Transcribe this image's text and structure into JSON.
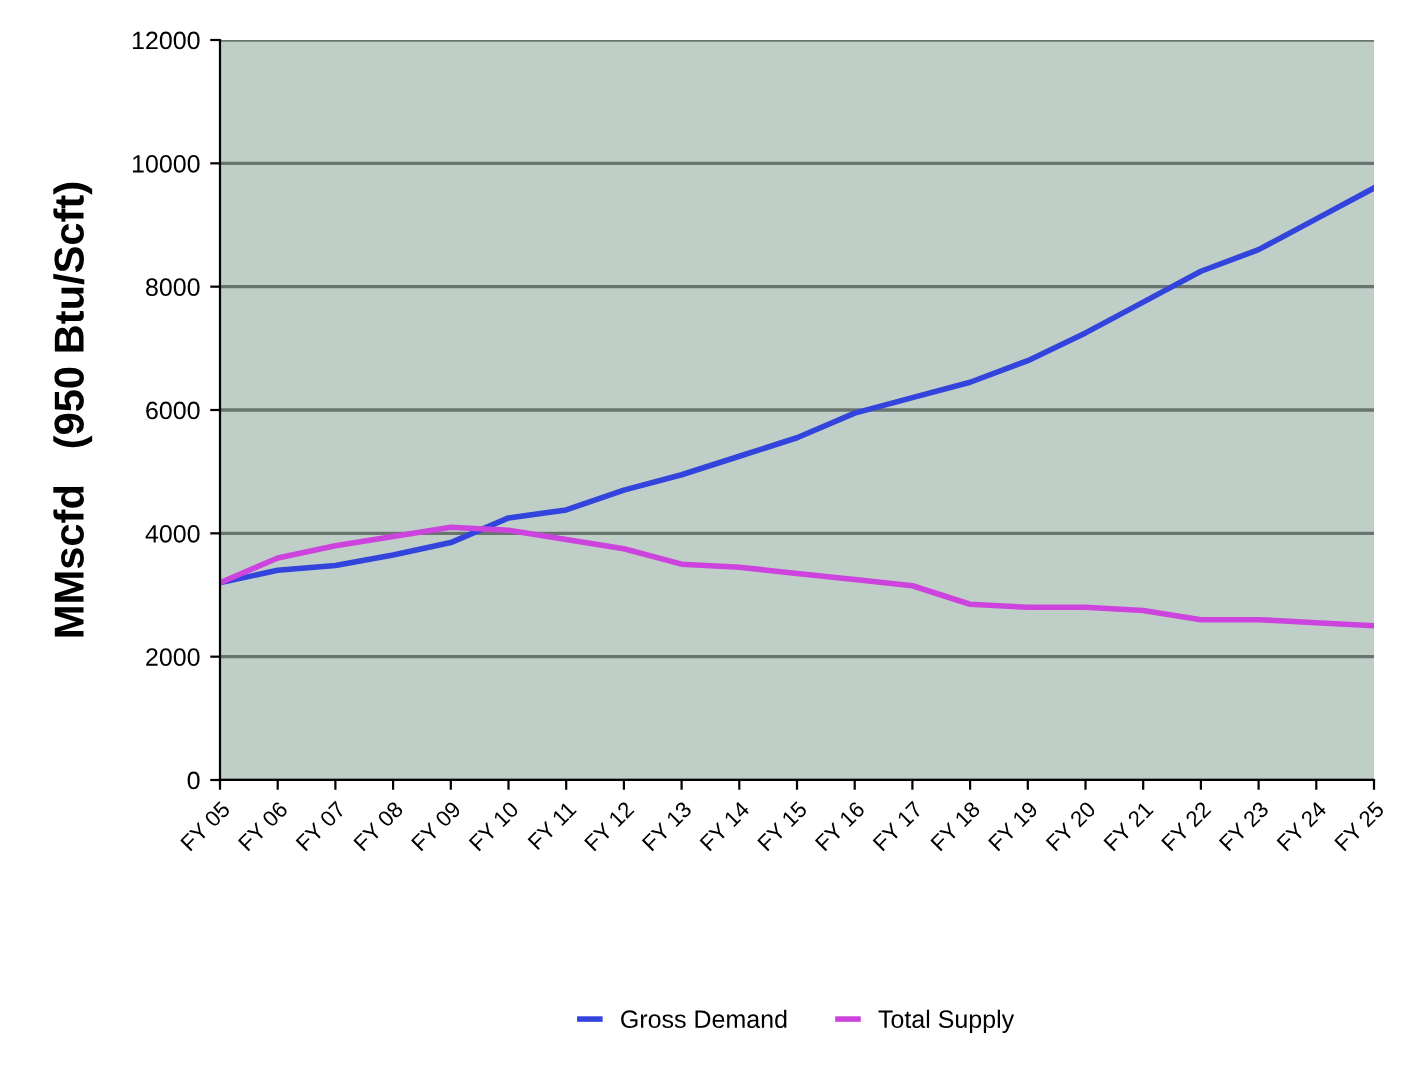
{
  "chart_data": {
    "type": "line",
    "ylabel": "MMscfd   (950 Btu/Scft)",
    "categories": [
      "FY 05",
      "FY 06",
      "FY 07",
      "FY 08",
      "FY 09",
      "FY 10",
      "FY 11",
      "FY 12",
      "FY 13",
      "FY 14",
      "FY 15",
      "FY 16",
      "FY 17",
      "FY 18",
      "FY 19",
      "FY 20",
      "FY 21",
      "FY 22",
      "FY 23",
      "FY 24",
      "FY 25"
    ],
    "series": [
      {
        "name": "Gross Demand",
        "color": "#3344dd",
        "values": [
          3200,
          3400,
          3480,
          3650,
          3850,
          4250,
          4380,
          4700,
          4950,
          5250,
          5550,
          5950,
          6200,
          6450,
          6800,
          7250,
          7750,
          8250,
          8600,
          9100,
          9600
        ]
      },
      {
        "name": "Total Supply",
        "color": "#cc44dd",
        "values": [
          3200,
          3600,
          3800,
          3950,
          4100,
          4050,
          3900,
          3750,
          3500,
          3450,
          3350,
          3250,
          3150,
          2850,
          2800,
          2800,
          2750,
          2600,
          2600,
          2550,
          2500
        ]
      }
    ],
    "ylim": [
      0,
      12000
    ],
    "yticks": [
      0,
      2000,
      4000,
      6000,
      8000,
      10000,
      12000
    ],
    "grid": "y",
    "legend": "bottom",
    "marker": "none",
    "line_style": "solid"
  }
}
